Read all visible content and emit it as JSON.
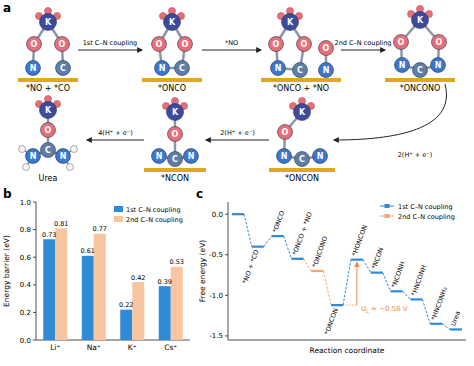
{
  "diagram": {
    "label": "a",
    "nodes": [
      {
        "label": "*NO + *CO",
        "atoms": [
          "K",
          "O",
          "O",
          "N",
          "C"
        ]
      },
      {
        "label": "*ONCO",
        "atoms": [
          "K",
          "O",
          "O",
          "N",
          "C"
        ]
      },
      {
        "label": "*ONCO + *NO",
        "atoms": [
          "K",
          "O",
          "O",
          "N",
          "C",
          "N",
          "O"
        ]
      },
      {
        "label": "*ONCONO",
        "atoms": [
          "K",
          "O",
          "O",
          "N",
          "C",
          "N"
        ]
      },
      {
        "label": "*ONCON",
        "atoms": [
          "K",
          "O",
          "N",
          "C",
          "N"
        ]
      },
      {
        "label": "*NCON",
        "atoms": [
          "K",
          "O",
          "N",
          "C",
          "N"
        ]
      },
      {
        "label": "Urea",
        "atoms": [
          "K",
          "O",
          "C",
          "N",
          "N"
        ]
      }
    ],
    "edges": [
      {
        "from": 0,
        "to": 1,
        "label": "1st C–N coupling"
      },
      {
        "from": 1,
        "to": 2,
        "label": "*NO"
      },
      {
        "from": 2,
        "to": 3,
        "label": "2nd C–N coupling"
      },
      {
        "from": 3,
        "to": 4,
        "label": "2(H⁺ + e⁻)"
      },
      {
        "from": 4,
        "to": 5,
        "label": "2(H⁺ + e⁻)"
      },
      {
        "from": 5,
        "to": 6,
        "label": "4(H⁺ + e⁻)"
      }
    ]
  },
  "chart_data": [
    {
      "type": "bar",
      "title": "b",
      "y_label": "Energy barrier (eV)",
      "categories": [
        "Li⁺",
        "Na⁺",
        "K⁺",
        "Cs⁺"
      ],
      "series": [
        {
          "name": "1st C–N coupling",
          "color": "#2f8ad8",
          "values": [
            0.73,
            0.61,
            0.22,
            0.39
          ]
        },
        {
          "name": "2nd C–N coupling",
          "color": "#f7c6a0",
          "values": [
            0.81,
            0.77,
            0.42,
            0.53
          ]
        }
      ],
      "ylim": [
        0,
        1.0
      ],
      "yticks": [
        {
          "value": 0,
          "label": "0.0"
        },
        0.2,
        0.4,
        0.6,
        0.8,
        {
          "value": 1.0,
          "label": "1.0"
        }
      ],
      "data_labels": true,
      "legend": "top-right"
    },
    {
      "type": "line",
      "title": "c",
      "x_label": "Reaction coordinate",
      "y_label": "Free energy (eV)",
      "categories": [
        null,
        "*NO + *CO",
        "*ONCO",
        "*ONCO + *NO",
        "*ONCONO",
        "*ONCON",
        "*HONCON",
        "*NCON",
        "*NCONH",
        "*HNCONH",
        "*HNCONH₂",
        "Urea"
      ],
      "series": [
        {
          "name": "1st C–N coupling",
          "color": "#2f8ad8",
          "marker": "level",
          "line_style": "dashed",
          "values": [
            0,
            -0.4,
            -0.27,
            -0.55,
            null,
            -1.12,
            -0.56,
            -0.72,
            -0.95,
            -1.05,
            -1.35,
            -1.42
          ]
        },
        {
          "name": "2nd C–N coupling",
          "color": "#f5a46a",
          "marker": "level",
          "line_style": "dashed",
          "values": [
            null,
            null,
            null,
            -0.55,
            -0.7,
            -1.12,
            null,
            null,
            null,
            null,
            null,
            null
          ]
        }
      ],
      "ylim": [
        -1.55,
        0.15
      ],
      "yticks": [
        {
          "value": 0,
          "label": "0.0"
        },
        -0.5,
        {
          "value": -1.0,
          "label": "-1.0"
        },
        -1.5
      ],
      "tick_labels": "y",
      "legend": "top-right",
      "annotations": [
        {
          "text": "U",
          "subscript": "L",
          "suffix": " = −0.56 V",
          "from": -1.12,
          "to": -0.56
        }
      ]
    }
  ]
}
